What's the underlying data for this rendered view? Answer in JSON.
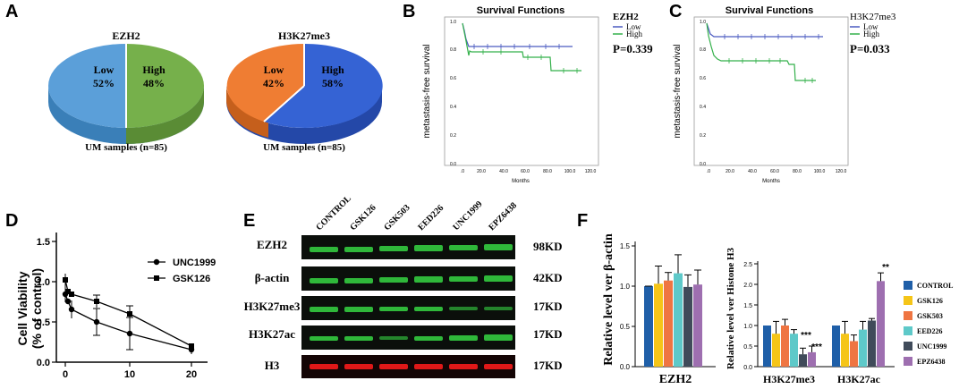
{
  "panel_letters": {
    "a": "A",
    "b": "B",
    "c": "C",
    "d": "D",
    "e": "E",
    "f": "F"
  },
  "pie_a": {
    "title": "EZH2",
    "caption": "UM samples (n=85)",
    "slices": [
      {
        "label": "Low",
        "pct": "52%",
        "value": 52,
        "color": "#4e9bd6"
      },
      {
        "label": "High",
        "pct": "48%",
        "value": 48,
        "color": "#70ad47"
      }
    ]
  },
  "pie_a2": {
    "title": "H3K27me3",
    "caption": "UM samples (n=85)",
    "slices": [
      {
        "label": "Low",
        "pct": "42%",
        "value": 42,
        "color": "#ed7d31"
      },
      {
        "label": "High",
        "pct": "58%",
        "value": 58,
        "color": "#2f5fd0"
      }
    ]
  },
  "survival_b": {
    "title": "Survival Functions",
    "legend_title": "EZH2",
    "legend": [
      "Low",
      "High"
    ],
    "pvalue": "P=0.339",
    "ylabel": "metastasis-free survival",
    "xlabel": "Months",
    "yticks": [
      "0.0",
      "0.2",
      "0.4",
      "0.6",
      "0.8",
      "1.0"
    ],
    "xticks": [
      ".0",
      "20.0",
      "40.0",
      "60.0",
      "80.0",
      "100.0",
      "120.0"
    ]
  },
  "survival_c": {
    "title": "Survival Functions",
    "legend_title": "H3K27me3",
    "legend": [
      "Low",
      "High"
    ],
    "pvalue": "P=0.033",
    "ylabel": "metastasis-free survival",
    "xlabel": "Months",
    "yticks": [
      "0.0",
      "0.2",
      "0.4",
      "0.6",
      "0.8",
      "1.0"
    ],
    "xticks": [
      ".0",
      "20.0",
      "40.0",
      "60.0",
      "80.0",
      "100.0",
      "120.0"
    ]
  },
  "viability_d": {
    "ylabel1": "Cell Viability",
    "ylabel2": "(% of control)",
    "yticks": [
      "0.0",
      "0.5",
      "1.0",
      "1.5"
    ],
    "xticks": [
      "0",
      "10",
      "20"
    ],
    "legend": [
      "UNC1999",
      "GSK126"
    ]
  },
  "blot_e": {
    "conditions": [
      "CONTROL",
      "GSK126",
      "GSK503",
      "EED226",
      "UNC1999",
      "EPZ6438"
    ],
    "rows": [
      {
        "label": "EZH2",
        "kd": "98KD"
      },
      {
        "label": "β-actin",
        "kd": "42KD"
      },
      {
        "label": "H3K27me3",
        "kd": "17KD"
      },
      {
        "label": "H3K27ac",
        "kd": "17KD"
      },
      {
        "label": "H3",
        "kd": "17KD"
      }
    ]
  },
  "bars_f": {
    "ylabel_left": "Relative level ver β-actin",
    "ylabel_right": "Relative level ver Histone H3",
    "left_yticks": [
      "0.0",
      "0.5",
      "1.0",
      "1.5"
    ],
    "right_yticks": [
      "0.0",
      "0.5",
      "1.0",
      "1.5",
      "2.0",
      "2.5"
    ],
    "group_left": "EZH2",
    "group_r1": "H3K27me3",
    "group_r2": "H3K27ac",
    "stars1": "***",
    "stars2": "***",
    "stars3": "**",
    "legend": [
      "CONTROL",
      "GSK126",
      "GSK503",
      "EED226",
      "UNC1999",
      "EPZ6438"
    ],
    "colors": [
      "#1f5fa8",
      "#f5c518",
      "#ef7542",
      "#5ec9c9",
      "#404b5a",
      "#9e6fb0"
    ]
  },
  "chart_data": [
    {
      "type": "pie",
      "title": "EZH2",
      "categories": [
        "Low",
        "High"
      ],
      "values": [
        52,
        48
      ]
    },
    {
      "type": "pie",
      "title": "H3K27me3",
      "categories": [
        "Low",
        "High"
      ],
      "values": [
        42,
        58
      ]
    },
    {
      "type": "line",
      "title": "Survival Functions",
      "subtitle": "EZH2",
      "xlabel": "Months",
      "ylabel": "metastasis-free survival",
      "xlim": [
        0,
        120
      ],
      "ylim": [
        0,
        1
      ],
      "series": [
        {
          "name": "Low",
          "x": [
            0,
            3,
            6,
            100
          ],
          "y": [
            1.0,
            0.9,
            0.82,
            0.82
          ]
        },
        {
          "name": "High",
          "x": [
            0,
            2,
            4,
            8,
            60,
            80,
            100
          ],
          "y": [
            1.0,
            0.92,
            0.84,
            0.78,
            0.74,
            0.66,
            0.66
          ]
        }
      ],
      "annotation": "P=0.339"
    },
    {
      "type": "line",
      "title": "Survival Functions",
      "subtitle": "H3K27me3",
      "xlabel": "Months",
      "ylabel": "metastasis-free survival",
      "xlim": [
        0,
        120
      ],
      "ylim": [
        0,
        1
      ],
      "series": [
        {
          "name": "Low",
          "x": [
            0,
            3,
            8,
            100
          ],
          "y": [
            1.0,
            0.95,
            0.89,
            0.89
          ]
        },
        {
          "name": "High",
          "x": [
            0,
            2,
            5,
            10,
            70,
            80,
            100
          ],
          "y": [
            1.0,
            0.88,
            0.76,
            0.72,
            0.7,
            0.57,
            0.57
          ]
        }
      ],
      "annotation": "P=0.033"
    },
    {
      "type": "line",
      "xlabel": "",
      "ylabel": "Cell Viability (% of control)",
      "xlim": [
        -1,
        22
      ],
      "ylim": [
        0,
        1.5
      ],
      "series": [
        {
          "name": "UNC1999",
          "x": [
            0,
            0.5,
            1,
            5,
            10,
            20
          ],
          "y": [
            0.85,
            0.75,
            0.65,
            0.5,
            0.35,
            0.15
          ]
        },
        {
          "name": "GSK126",
          "x": [
            0,
            0.5,
            1,
            5,
            10,
            20
          ],
          "y": [
            1.02,
            0.88,
            0.85,
            0.76,
            0.6,
            0.2
          ]
        }
      ]
    },
    {
      "type": "bar",
      "ylabel": "Relative level ver β-actin",
      "categories": [
        "EZH2"
      ],
      "ylim": [
        0,
        1.5
      ],
      "series": [
        {
          "name": "CONTROL",
          "values": [
            1.0
          ]
        },
        {
          "name": "GSK126",
          "values": [
            1.03
          ]
        },
        {
          "name": "GSK503",
          "values": [
            1.07
          ]
        },
        {
          "name": "EED226",
          "values": [
            1.16
          ]
        },
        {
          "name": "UNC1999",
          "values": [
            0.99
          ]
        },
        {
          "name": "EPZ6438",
          "values": [
            1.02
          ]
        }
      ]
    },
    {
      "type": "bar",
      "ylabel": "Relative level ver Histone H3",
      "categories": [
        "H3K27me3",
        "H3K27ac"
      ],
      "ylim": [
        0,
        2.5
      ],
      "series": [
        {
          "name": "CONTROL",
          "values": [
            1.0,
            1.0
          ]
        },
        {
          "name": "GSK126",
          "values": [
            0.8,
            0.8
          ]
        },
        {
          "name": "GSK503",
          "values": [
            1.0,
            0.62
          ]
        },
        {
          "name": "EED226",
          "values": [
            0.8,
            0.9
          ]
        },
        {
          "name": "UNC1999",
          "values": [
            0.3,
            1.12
          ]
        },
        {
          "name": "EPZ6438",
          "values": [
            0.35,
            2.08
          ]
        }
      ]
    }
  ]
}
